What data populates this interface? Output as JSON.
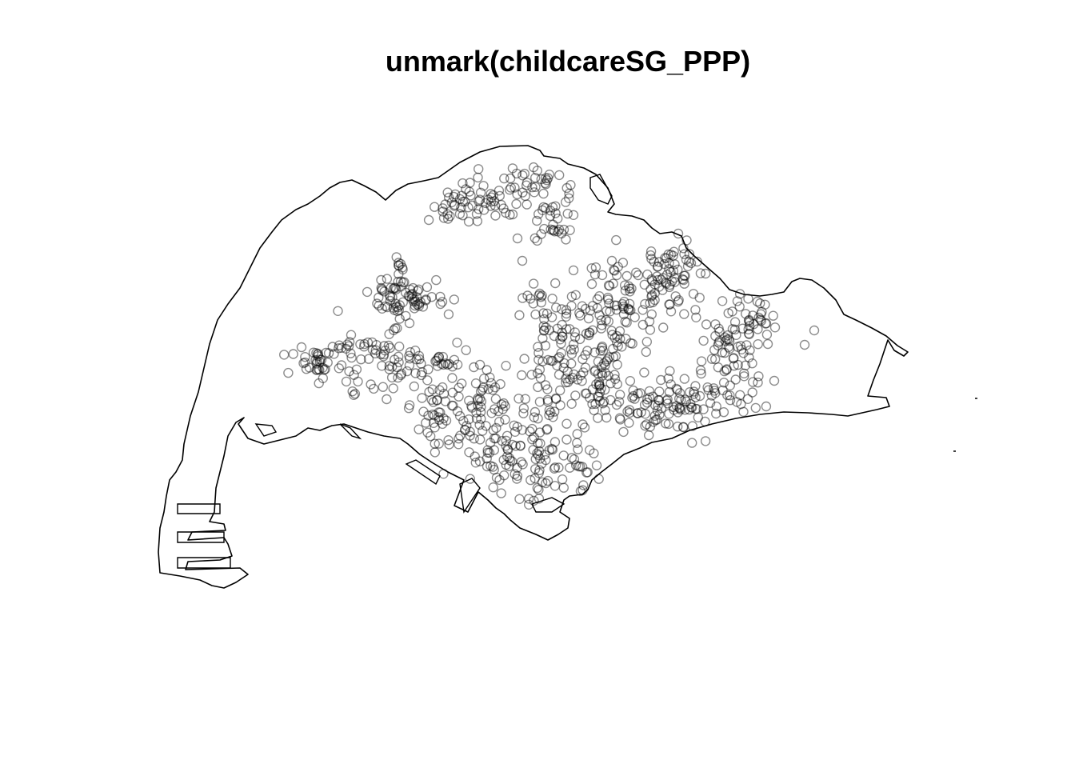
{
  "title": "unmark(childcareSG_PPP)",
  "colors": {
    "background": "#ffffff",
    "outline": "#000000",
    "point": "#000000"
  },
  "point_style": {
    "shape": "open-circle",
    "opacity": 0.45
  }
}
